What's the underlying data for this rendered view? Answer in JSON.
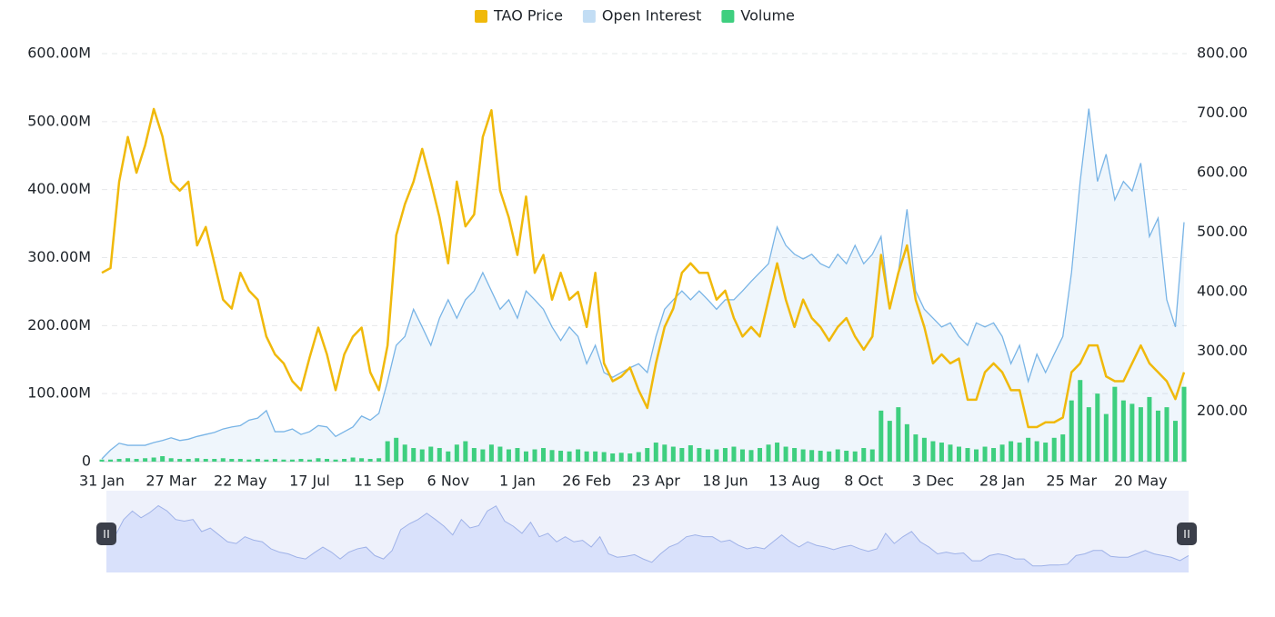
{
  "chart_data": {
    "type": "combo",
    "categories": [
      "31 Jan",
      null,
      null,
      null,
      null,
      null,
      null,
      null,
      "27 Mar",
      null,
      null,
      null,
      null,
      null,
      null,
      null,
      "22 May",
      null,
      null,
      null,
      null,
      null,
      null,
      null,
      "17 Jul",
      null,
      null,
      null,
      null,
      null,
      null,
      null,
      "11 Sep",
      null,
      null,
      null,
      null,
      null,
      null,
      null,
      "6 Nov",
      null,
      null,
      null,
      null,
      null,
      null,
      null,
      "1 Jan",
      null,
      null,
      null,
      null,
      null,
      null,
      null,
      "26 Feb",
      null,
      null,
      null,
      null,
      null,
      null,
      null,
      "23 Apr",
      null,
      null,
      null,
      null,
      null,
      null,
      null,
      "18 Jun",
      null,
      null,
      null,
      null,
      null,
      null,
      null,
      "13 Aug",
      null,
      null,
      null,
      null,
      null,
      null,
      null,
      "8 Oct",
      null,
      null,
      null,
      null,
      null,
      null,
      null,
      "3 Dec",
      null,
      null,
      null,
      null,
      null,
      null,
      null,
      "28 Jan",
      null,
      null,
      null,
      null,
      null,
      null,
      null,
      "25 Mar",
      null,
      null,
      null,
      null,
      null,
      null,
      null,
      "20 May",
      null,
      null,
      null,
      null,
      null
    ],
    "series": [
      {
        "name": "TAO Price",
        "type": "line",
        "axis": "y2",
        "color": "#f0b90b",
        "values": [
          432,
          440,
          585,
          660,
          600,
          646,
          707,
          661,
          585,
          570,
          585,
          478,
          509,
          448,
          387,
          372,
          432,
          402,
          387,
          325,
          295,
          280,
          250,
          235,
          290,
          340,
          295,
          235,
          295,
          325,
          340,
          265,
          235,
          310,
          495,
          547,
          585,
          640,
          585,
          525,
          448,
          585,
          510,
          530,
          660,
          705,
          570,
          525,
          462,
          560,
          432,
          462,
          387,
          432,
          387,
          400,
          341,
          432,
          280,
          250,
          258,
          273,
          235,
          205,
          280,
          341,
          372,
          432,
          448,
          432,
          432,
          387,
          402,
          356,
          325,
          341,
          325,
          387,
          448,
          387,
          341,
          387,
          356,
          341,
          318,
          341,
          356,
          325,
          303,
          325,
          462,
          372,
          432,
          478,
          387,
          341,
          280,
          295,
          280,
          288,
          219,
          219,
          265,
          280,
          265,
          235,
          235,
          173,
          173,
          181,
          181,
          189,
          265,
          280,
          310,
          310,
          258,
          250,
          250,
          280,
          310,
          280,
          265,
          250,
          220,
          265
        ]
      },
      {
        "name": "Open Interest",
        "type": "area",
        "color": "#78b4e6",
        "values": [
          4,
          17,
          27,
          24,
          24,
          24,
          28,
          31,
          35,
          31,
          33,
          37,
          40,
          43,
          48,
          51,
          53,
          61,
          64,
          75,
          44,
          44,
          48,
          40,
          44,
          53,
          51,
          37,
          44,
          51,
          67,
          61,
          71,
          118,
          171,
          184,
          224,
          198,
          171,
          211,
          238,
          211,
          238,
          251,
          278,
          251,
          224,
          238,
          211,
          251,
          238,
          224,
          198,
          178,
          198,
          184,
          144,
          171,
          131,
          124,
          131,
          138,
          144,
          131,
          184,
          224,
          238,
          251,
          238,
          251,
          238,
          224,
          238,
          238,
          251,
          265,
          278,
          291,
          345,
          318,
          305,
          298,
          305,
          291,
          285,
          305,
          291,
          318,
          291,
          305,
          331,
          224,
          278,
          371,
          251,
          224,
          211,
          198,
          204,
          184,
          171,
          204,
          198,
          204,
          184,
          144,
          171,
          118,
          158,
          131,
          158,
          184,
          278,
          412,
          519,
          412,
          452,
          385,
          412,
          398,
          439,
          331,
          358,
          238,
          198,
          352
        ]
      },
      {
        "name": "Volume",
        "type": "bar",
        "color": "#3ecf7f",
        "values": [
          3,
          3,
          4,
          5,
          4,
          5,
          6,
          8,
          5,
          4,
          4,
          5,
          4,
          4,
          5,
          4,
          4,
          3,
          4,
          3,
          4,
          3,
          3,
          4,
          3,
          5,
          4,
          3,
          4,
          6,
          5,
          4,
          5,
          30,
          35,
          25,
          20,
          18,
          22,
          20,
          15,
          25,
          30,
          20,
          18,
          25,
          22,
          18,
          20,
          15,
          18,
          20,
          17,
          16,
          15,
          18,
          15,
          15,
          14,
          12,
          13,
          12,
          14,
          20,
          28,
          25,
          22,
          20,
          24,
          20,
          18,
          18,
          20,
          22,
          18,
          17,
          20,
          25,
          28,
          22,
          20,
          18,
          17,
          16,
          15,
          18,
          16,
          15,
          20,
          18,
          75,
          60,
          80,
          55,
          40,
          35,
          30,
          28,
          25,
          22,
          20,
          18,
          22,
          20,
          25,
          30,
          28,
          35,
          30,
          28,
          35,
          40,
          90,
          120,
          80,
          100,
          70,
          110,
          90,
          85,
          80,
          95,
          75,
          80,
          60,
          110
        ]
      }
    ],
    "ylim": [
      0,
      600
    ],
    "yticks": [
      0,
      {
        "value": 100,
        "label": "100.00M"
      },
      {
        "value": 200,
        "label": "200.00M"
      },
      {
        "value": 300,
        "label": "300.00M"
      },
      {
        "value": 400,
        "label": "400.00M"
      },
      {
        "value": 500,
        "label": "500.00M"
      },
      {
        "value": 600,
        "label": "600.00M"
      }
    ],
    "y2lim": [
      115,
      800
    ],
    "y2ticks": [
      {
        "value": 200,
        "label": "200.00"
      },
      {
        "value": 300,
        "label": "300.00"
      },
      {
        "value": 400,
        "label": "400.00"
      },
      {
        "value": 500,
        "label": "500.00"
      },
      {
        "value": 600,
        "label": "600.00"
      },
      {
        "value": 700,
        "label": "700.00"
      },
      {
        "value": 800,
        "label": "800.00"
      }
    ],
    "grid": true,
    "legend": "top"
  }
}
